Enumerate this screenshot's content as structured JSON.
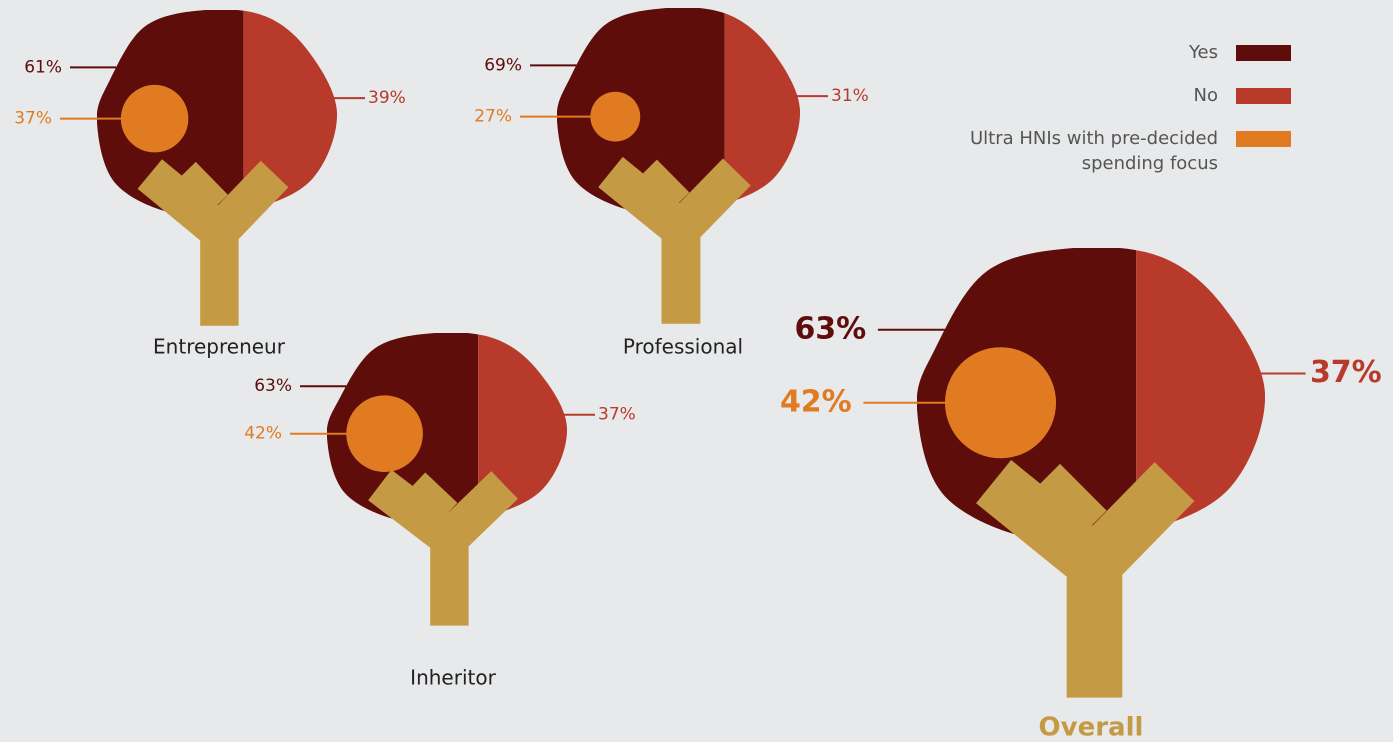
{
  "chart_data": {
    "type": "tree",
    "categories": [
      "Entrepreneur",
      "Professional",
      "Inheritor",
      "Overall"
    ],
    "series": [
      {
        "name": "Yes",
        "color": "#5e0d0b",
        "values": [
          61,
          69,
          63,
          63
        ],
        "value_labels": [
          "61%",
          "69%",
          "63%",
          "63%"
        ]
      },
      {
        "name": "No",
        "color": "#b83a2a",
        "values": [
          39,
          31,
          37,
          37
        ],
        "value_labels": [
          "39%",
          "31%",
          "37%",
          "37%"
        ]
      },
      {
        "name": "Ultra HNIs with pre-decided spending focus",
        "color": "#e07b22",
        "values": [
          37,
          27,
          42,
          42
        ],
        "value_labels": [
          "37%",
          "27%",
          "42%",
          "42%"
        ]
      }
    ],
    "trunk_color": "#c49a45"
  }
}
